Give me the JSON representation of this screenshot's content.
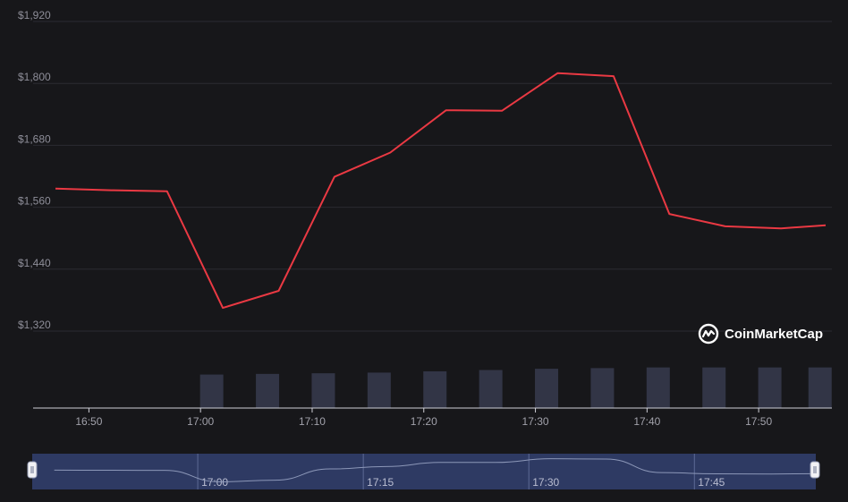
{
  "brand": {
    "name": "CoinMarketCap"
  },
  "colors": {
    "background": "#17171a",
    "price_line": "#ea3943",
    "volume_bar": "#323546",
    "navigator_fill": "#2e3a63",
    "navigator_line": "#8c97b8",
    "grid": "#2b2b31"
  },
  "icons": {
    "brand_logo": "coinmarketcap-logo-icon"
  },
  "chart_data": {
    "type": "line",
    "y_tick_labels": [
      "$1,320",
      "$1,440",
      "$1,560",
      "$1,680",
      "$1,800",
      "$1,920"
    ],
    "y_ticks": [
      1320,
      1440,
      1560,
      1680,
      1800,
      1920
    ],
    "ylim": [
      1320,
      1920
    ],
    "x_tick_labels": [
      "16:50",
      "17:00",
      "17:10",
      "17:20",
      "17:30",
      "17:40",
      "17:50"
    ],
    "x_ticks_min": [
      1010,
      1020,
      1030,
      1040,
      1050,
      1060,
      1070
    ],
    "xlim_min": [
      1005,
      1076
    ],
    "grid": true,
    "series": [
      {
        "type": "line",
        "x_min": [
          1007,
          1012,
          1017,
          1022,
          1027,
          1032,
          1037,
          1042,
          1047,
          1052,
          1057,
          1062,
          1067,
          1072,
          1076
        ],
        "values": [
          1596,
          1593,
          1591,
          1365,
          1398,
          1619,
          1666,
          1748,
          1747,
          1820,
          1814,
          1547,
          1523,
          1519,
          1525
        ]
      },
      {
        "type": "bar",
        "x_min": [
          1021,
          1026,
          1031,
          1036,
          1041,
          1046,
          1051,
          1056,
          1061,
          1066,
          1071,
          1075.5
        ],
        "values": [
          52,
          53,
          54,
          55,
          57,
          59,
          61,
          62,
          63,
          63,
          63,
          63
        ]
      }
    ],
    "navigator": {
      "tick_labels": [
        "17:00",
        "17:15",
        "17:30",
        "17:45"
      ],
      "ticks_min": [
        1020,
        1035,
        1050,
        1065
      ],
      "range_selected": [
        "16:45",
        "17:55"
      ]
    },
    "legend": "none",
    "watermark": "bottom-right"
  }
}
